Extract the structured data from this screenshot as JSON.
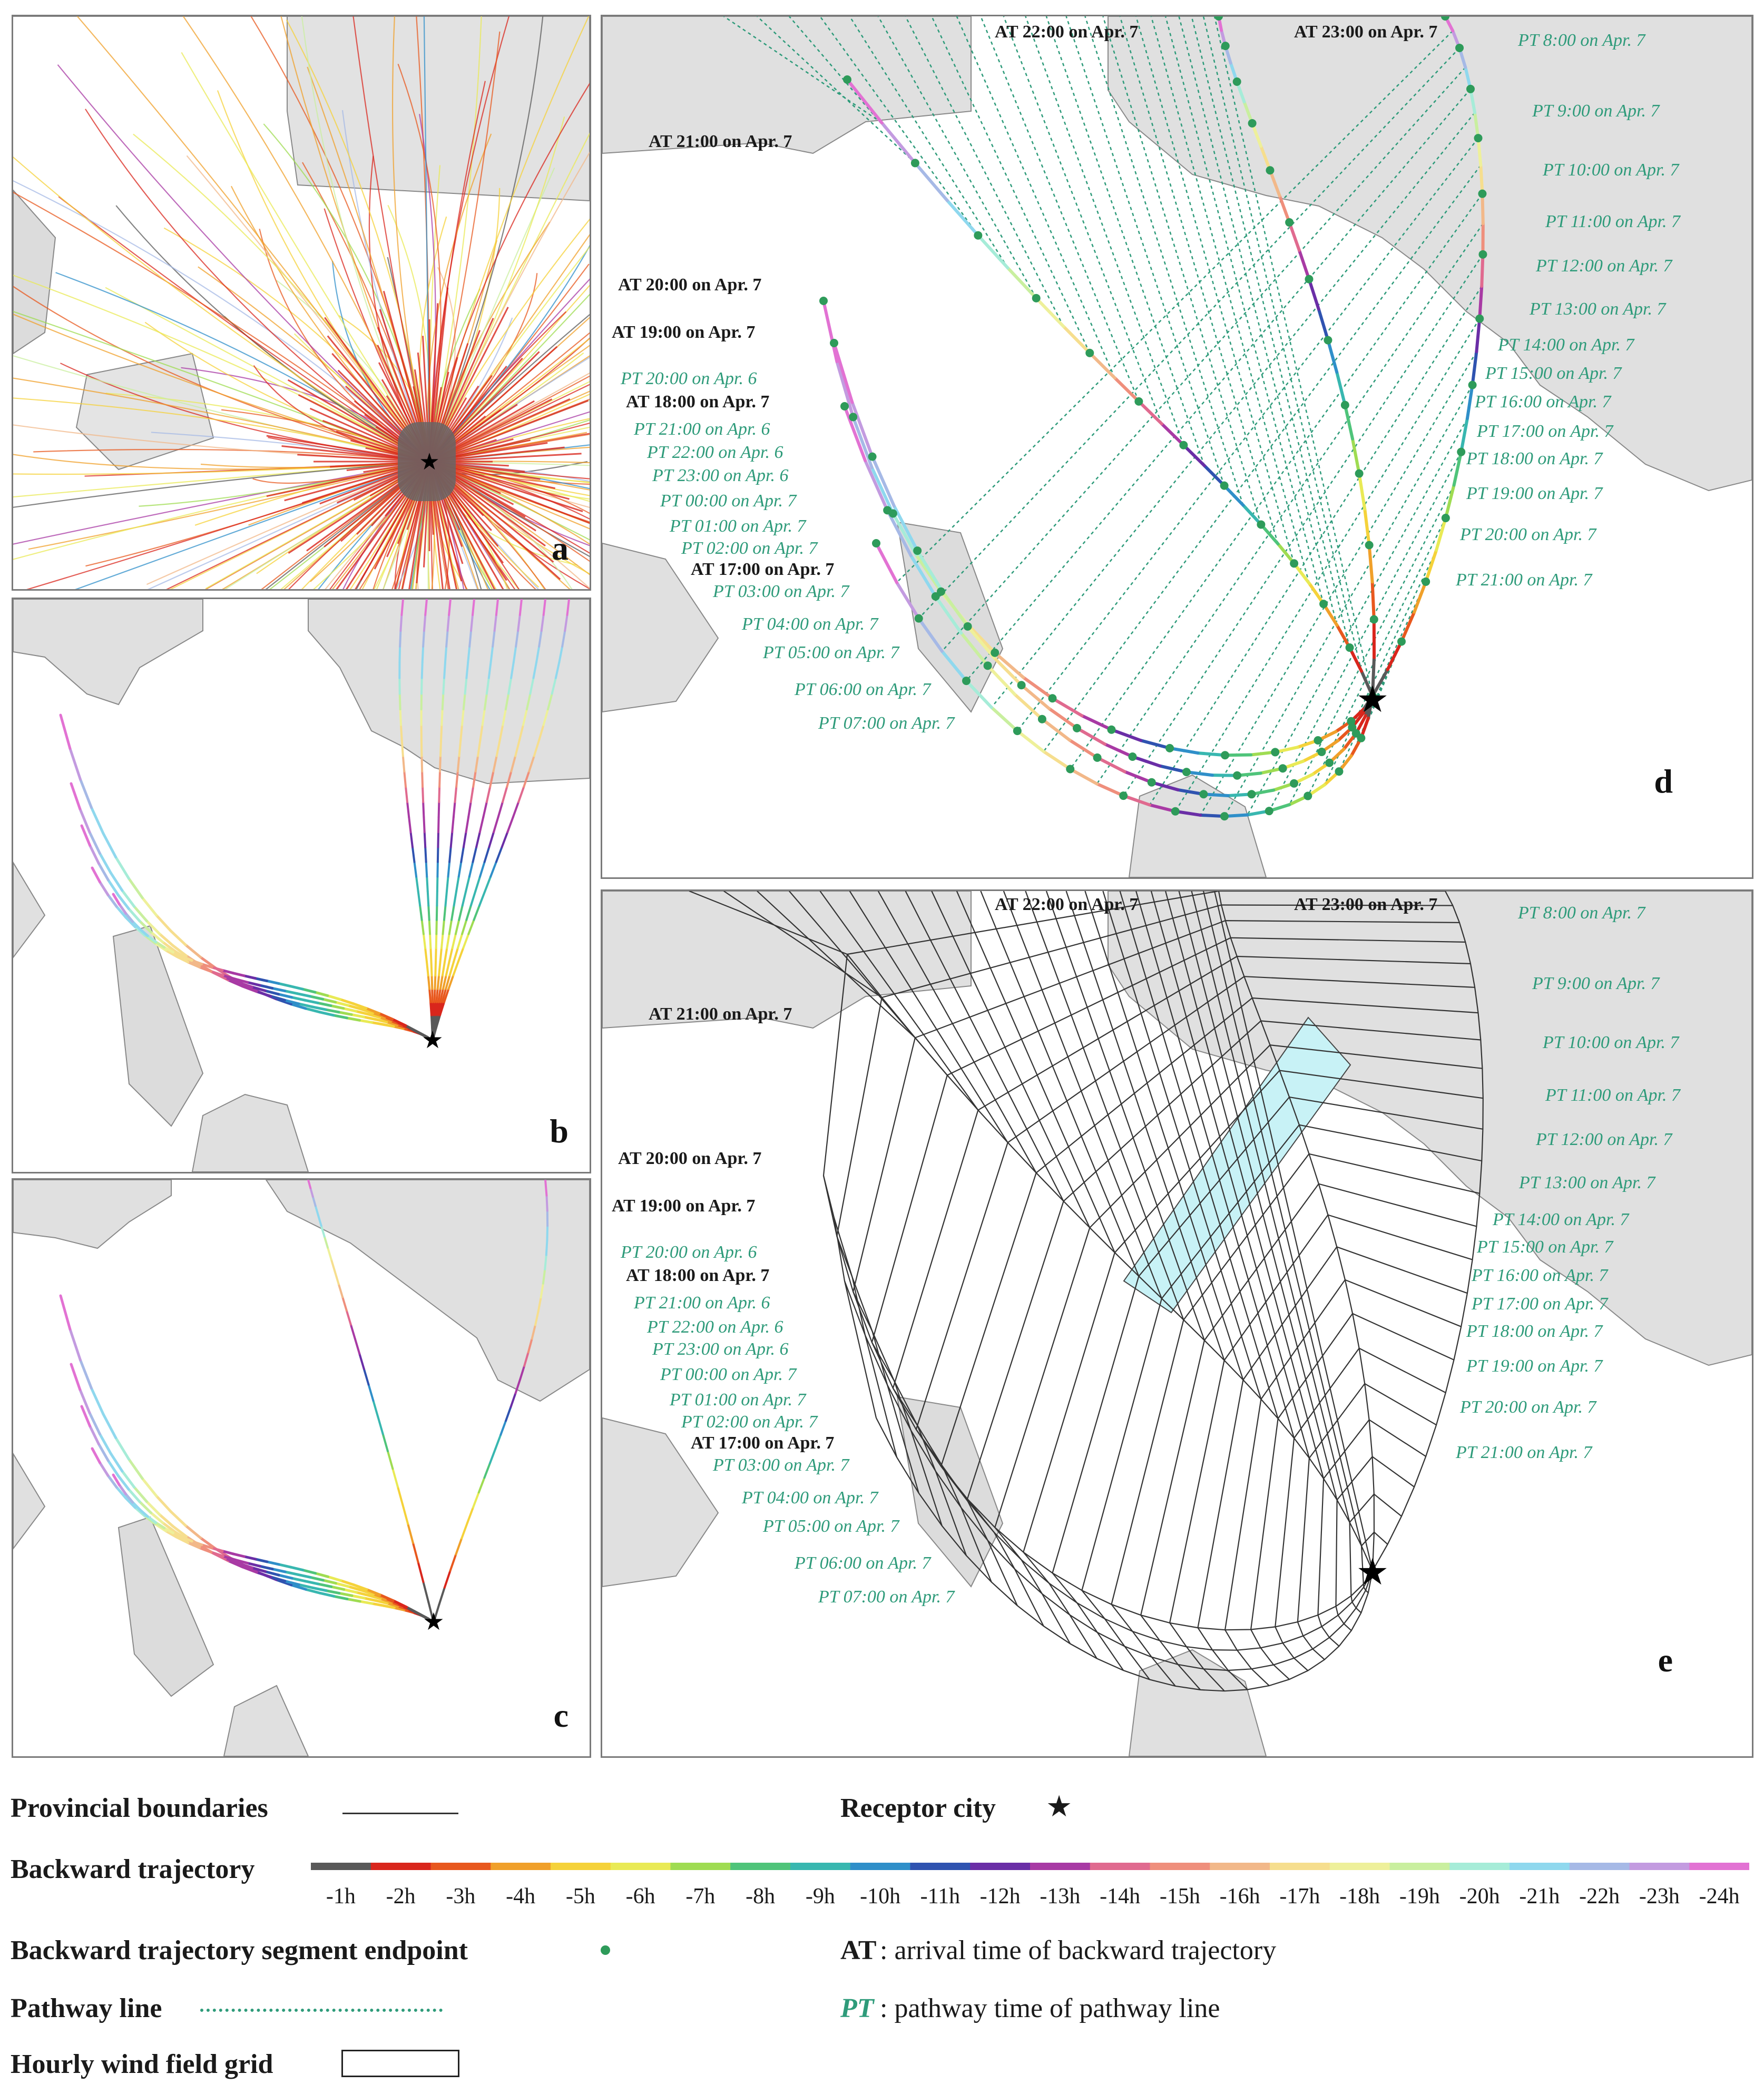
{
  "panels": {
    "a": "a",
    "b": "b",
    "c": "c",
    "d": "d",
    "e": "e"
  },
  "arrival_labels": {
    "at_22": "AT  22:00 on Apr. 7",
    "at_23": "AT  23:00 on Apr. 7",
    "at_21": "AT  21:00 on Apr. 7",
    "at_20": "AT  20:00 on Apr. 7",
    "at_19": "AT  19:00 on Apr. 7",
    "at_18": "AT  18:00 on Apr. 7",
    "at_17": "AT  17:00 on Apr. 7"
  },
  "pathway_labels_right": [
    "PT  8:00 on Apr. 7",
    "PT  9:00 on Apr. 7",
    "PT  10:00 on Apr. 7",
    "PT  11:00 on Apr. 7",
    "PT  12:00 on Apr. 7",
    "PT  13:00 on Apr. 7",
    "PT  14:00 on Apr. 7",
    "PT  15:00 on Apr. 7",
    "PT  16:00 on Apr. 7",
    "PT  17:00 on Apr. 7",
    "PT  18:00 on Apr. 7",
    "PT  19:00 on Apr. 7",
    "PT  20:00 on Apr. 7",
    "PT  21:00 on Apr. 7"
  ],
  "pathway_labels_left": [
    "PT  20:00 on Apr. 6",
    "PT  21:00 on Apr. 6",
    "PT  22:00 on Apr. 6",
    "PT  23:00 on Apr. 6",
    "PT  00:00 on Apr. 7",
    "PT  01:00 on Apr. 7",
    "PT  02:00 on Apr. 7",
    "PT  03:00 on Apr. 7",
    "PT  04:00 on Apr. 7",
    "PT  05:00 on Apr. 7",
    "PT  06:00 on Apr. 7",
    "PT  07:00 on Apr. 7"
  ],
  "legend": {
    "provincial": "Provincial boundaries",
    "receptor": "Receptor city",
    "backward": "Backward trajectory",
    "endpoint": "Backward trajectory segment endpoint",
    "at_key": "AT",
    "at_desc": ": arrival time of backward trajectory",
    "pathway": "Pathway line",
    "pt_key": "PT",
    "pt_desc": ":   pathway time of pathway line",
    "grid": "Hourly wind field grid",
    "ticks": [
      "-1h",
      "-2h",
      "-3h",
      "-4h",
      "-5h",
      "-6h",
      "-7h",
      "-8h",
      "-9h",
      "-10h",
      "-11h",
      "-12h",
      "-13h",
      "-14h",
      "-15h",
      "-16h",
      "-17h",
      "-18h",
      "-19h",
      "-20h",
      "-21h",
      "-22h",
      "-23h",
      "-24h"
    ],
    "colors": [
      "#595959",
      "#d9261c",
      "#e8581e",
      "#f0a02a",
      "#f5d23a",
      "#e9ea55",
      "#9fdc52",
      "#4fc47a",
      "#38b7b0",
      "#2f8fc9",
      "#2f53b0",
      "#6a2ea6",
      "#a83aa4",
      "#e06a8f",
      "#ef8f7c",
      "#f2b889",
      "#f6de8e",
      "#eef09a",
      "#c9ef9f",
      "#a6ecd8",
      "#8fd8ee",
      "#a6b9e6",
      "#c39be0",
      "#e272d3"
    ]
  }
}
